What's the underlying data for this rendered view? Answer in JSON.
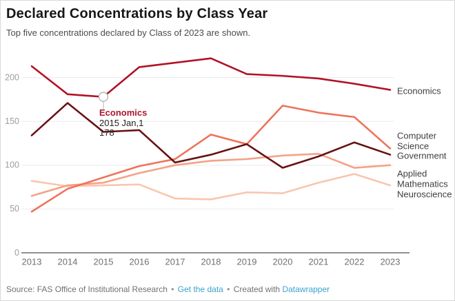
{
  "header": {
    "title": "Declared Concentrations by Class Year",
    "subtitle": "Top five concentrations declared by Class of 2023 are shown."
  },
  "chart_data": {
    "type": "line",
    "x": [
      2013,
      2014,
      2015,
      2016,
      2017,
      2018,
      2019,
      2020,
      2021,
      2022,
      2023
    ],
    "x_tick_labels": [
      "2013",
      "2014",
      "2015",
      "2016",
      "2017",
      "2018",
      "2019",
      "2020",
      "2021",
      "2022",
      "2023"
    ],
    "yticks": [
      0,
      50,
      100,
      150,
      200
    ],
    "ytick_labels": [
      "0",
      "50",
      "100",
      "150",
      "200"
    ],
    "ylim": [
      0,
      230
    ],
    "grid": true,
    "legend_position": "right-direct-labels",
    "series": [
      {
        "name": "Neuroscience",
        "color": "#f8c6ae",
        "values": [
          82,
          76,
          77,
          78,
          62,
          61,
          69,
          68,
          80,
          90,
          77
        ],
        "label_lines": [
          "Neuroscience"
        ]
      },
      {
        "name": "Applied Mathematics",
        "color": "#f4a287",
        "values": [
          65,
          77,
          80,
          91,
          100,
          105,
          107,
          111,
          113,
          97,
          100
        ],
        "label_lines": [
          "Applied",
          "Mathematics"
        ]
      },
      {
        "name": "Computer Science",
        "color": "#ef735a",
        "values": [
          47,
          73,
          86,
          99,
          107,
          135,
          124,
          168,
          160,
          155,
          119
        ],
        "label_lines": [
          "Computer",
          "Science"
        ]
      },
      {
        "name": "Government",
        "color": "#681112",
        "values": [
          134,
          171,
          138,
          140,
          103,
          112,
          124,
          97,
          110,
          126,
          112
        ],
        "label_lines": [
          "Government"
        ]
      },
      {
        "name": "Economics",
        "color": "#b11226",
        "values": [
          213,
          181,
          178,
          212,
          217,
          222,
          204,
          202,
          199,
          193,
          186
        ],
        "label_lines": [
          "Economics"
        ]
      }
    ]
  },
  "tooltip": {
    "series": "Economics",
    "date": "2015 Jan,1",
    "value": "178",
    "year": 2015,
    "point_value": 178
  },
  "footer": {
    "source_text": "Source: FAS Office of Institutional Research",
    "separator": "•",
    "get_data_label": "Get the data",
    "created_with_label": "Created with",
    "datawrapper_label": "Datawrapper",
    "link_color": "#3ba3cc"
  }
}
